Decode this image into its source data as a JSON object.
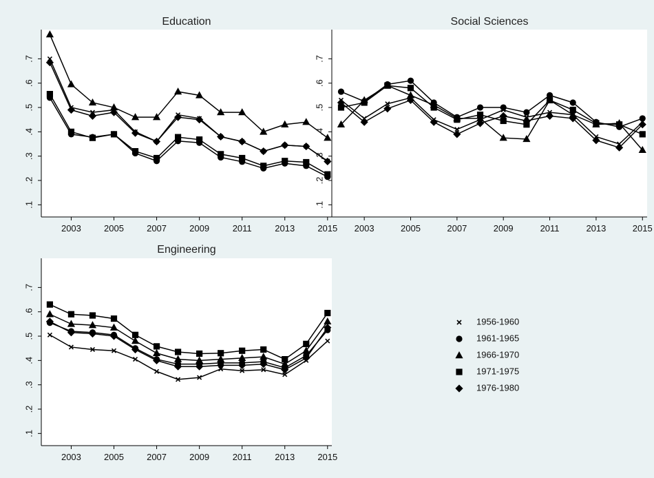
{
  "chart_data": [
    {
      "type": "line",
      "title": "Education",
      "x": [
        2002,
        2003,
        2004,
        2005,
        2006,
        2007,
        2008,
        2009,
        2010,
        2011,
        2012,
        2013,
        2014,
        2015
      ],
      "xticks": [
        "2003",
        "2005",
        "2007",
        "2009",
        "2011",
        "2013",
        "2015"
      ],
      "yticks": [
        ".1",
        ".2",
        ".3",
        ".4",
        ".5",
        ".6",
        ".7"
      ],
      "ylim": [
        0.05,
        0.82
      ],
      "xlim": [
        2001.6,
        2015.2
      ],
      "series": [
        {
          "name": "1956-1960",
          "marker": "x",
          "values": [
            0.7,
            0.5,
            0.48,
            0.49,
            0.4,
            0.36,
            0.47,
            0.455,
            0.38,
            0.36,
            0.32,
            0.345,
            0.34,
            0.28
          ]
        },
        {
          "name": "1961-1965",
          "marker": "circle",
          "values": [
            0.54,
            0.39,
            0.378,
            0.39,
            0.312,
            0.28,
            0.362,
            0.355,
            0.295,
            0.277,
            0.25,
            0.27,
            0.26,
            0.215
          ]
        },
        {
          "name": "1966-1970",
          "marker": "triangle",
          "values": [
            0.8,
            0.595,
            0.52,
            0.5,
            0.46,
            0.46,
            0.565,
            0.55,
            0.48,
            0.48,
            0.4,
            0.43,
            0.44,
            0.375
          ]
        },
        {
          "name": "1971-1975",
          "marker": "square",
          "values": [
            0.555,
            0.4,
            0.375,
            0.39,
            0.32,
            0.292,
            0.378,
            0.368,
            0.308,
            0.292,
            0.26,
            0.28,
            0.275,
            0.225
          ]
        },
        {
          "name": "1976-1980",
          "marker": "diamond",
          "values": [
            0.685,
            0.49,
            0.465,
            0.48,
            0.395,
            0.36,
            0.46,
            0.45,
            0.38,
            0.36,
            0.32,
            0.345,
            0.34,
            0.278
          ]
        }
      ]
    },
    {
      "type": "line",
      "title": "Social Sciences",
      "x": [
        2002,
        2003,
        2004,
        2005,
        2006,
        2007,
        2008,
        2009,
        2010,
        2011,
        2012,
        2013,
        2014,
        2015
      ],
      "xticks": [
        "2003",
        "2005",
        "2007",
        "2009",
        "2011",
        "2013",
        "2015"
      ],
      "yticks": [
        ".1",
        ".2",
        ".3",
        ".4",
        ".5",
        ".6",
        ".7"
      ],
      "ylim": [
        0.05,
        0.82
      ],
      "xlim": [
        2001.6,
        2015.2
      ],
      "series": [
        {
          "name": "1956-1960",
          "marker": "x",
          "values": [
            0.53,
            0.455,
            0.515,
            0.54,
            0.45,
            0.41,
            0.45,
            0.49,
            0.46,
            0.48,
            0.47,
            0.38,
            0.35,
            0.44
          ]
        },
        {
          "name": "1961-1965",
          "marker": "circle",
          "values": [
            0.565,
            0.525,
            0.595,
            0.61,
            0.52,
            0.46,
            0.5,
            0.5,
            0.48,
            0.55,
            0.52,
            0.44,
            0.42,
            0.455
          ]
        },
        {
          "name": "1966-1970",
          "marker": "triangle",
          "values": [
            0.43,
            0.53,
            0.59,
            0.55,
            0.51,
            0.455,
            0.455,
            0.375,
            0.37,
            0.53,
            0.47,
            0.43,
            0.435,
            0.325
          ]
        },
        {
          "name": "1971-1975",
          "marker": "square",
          "values": [
            0.5,
            0.52,
            0.59,
            0.58,
            0.5,
            0.45,
            0.47,
            0.445,
            0.43,
            0.53,
            0.49,
            0.435,
            0.43,
            0.39
          ]
        },
        {
          "name": "1976-1980",
          "marker": "diamond",
          "values": [
            0.52,
            0.44,
            0.495,
            0.53,
            0.44,
            0.39,
            0.435,
            0.465,
            0.445,
            0.465,
            0.455,
            0.365,
            0.335,
            0.43
          ]
        }
      ]
    },
    {
      "type": "line",
      "title": "Engineering",
      "x": [
        2002,
        2003,
        2004,
        2005,
        2006,
        2007,
        2008,
        2009,
        2010,
        2011,
        2012,
        2013,
        2014,
        2015
      ],
      "xticks": [
        "2003",
        "2005",
        "2007",
        "2009",
        "2011",
        "2013",
        "2015"
      ],
      "yticks": [
        ".1",
        ".2",
        ".3",
        ".4",
        ".5",
        ".6",
        ".7"
      ],
      "ylim": [
        0.05,
        0.82
      ],
      "xlim": [
        2001.6,
        2015.2
      ],
      "series": [
        {
          "name": "1956-1960",
          "marker": "x",
          "values": [
            0.505,
            0.455,
            0.445,
            0.44,
            0.405,
            0.355,
            0.322,
            0.33,
            0.365,
            0.358,
            0.362,
            0.342,
            0.4,
            0.48
          ]
        },
        {
          "name": "1961-1965",
          "marker": "circle",
          "values": [
            0.555,
            0.52,
            0.515,
            0.505,
            0.45,
            0.405,
            0.385,
            0.385,
            0.39,
            0.39,
            0.395,
            0.37,
            0.42,
            0.525
          ]
        },
        {
          "name": "1966-1970",
          "marker": "triangle",
          "values": [
            0.59,
            0.55,
            0.545,
            0.535,
            0.48,
            0.43,
            0.405,
            0.4,
            0.405,
            0.41,
            0.415,
            0.385,
            0.44,
            0.56
          ]
        },
        {
          "name": "1971-1975",
          "marker": "square",
          "values": [
            0.63,
            0.59,
            0.585,
            0.572,
            0.505,
            0.458,
            0.435,
            0.428,
            0.43,
            0.44,
            0.445,
            0.405,
            0.468,
            0.595
          ]
        },
        {
          "name": "1976-1980",
          "marker": "diamond",
          "values": [
            0.56,
            0.515,
            0.51,
            0.5,
            0.445,
            0.4,
            0.375,
            0.375,
            0.38,
            0.38,
            0.385,
            0.362,
            0.41,
            0.535
          ]
        }
      ]
    }
  ],
  "legend": {
    "placement": "bottom-right",
    "items": [
      {
        "label": "1956-1960",
        "marker": "x"
      },
      {
        "label": "1961-1965",
        "marker": "circle"
      },
      {
        "label": "1966-1970",
        "marker": "triangle"
      },
      {
        "label": "1971-1975",
        "marker": "square"
      },
      {
        "label": "1976-1980",
        "marker": "diamond"
      }
    ]
  },
  "style": {
    "background": "#eaf2f3",
    "plot_background": "#ffffff",
    "line_color": "#000000",
    "grid": false
  }
}
